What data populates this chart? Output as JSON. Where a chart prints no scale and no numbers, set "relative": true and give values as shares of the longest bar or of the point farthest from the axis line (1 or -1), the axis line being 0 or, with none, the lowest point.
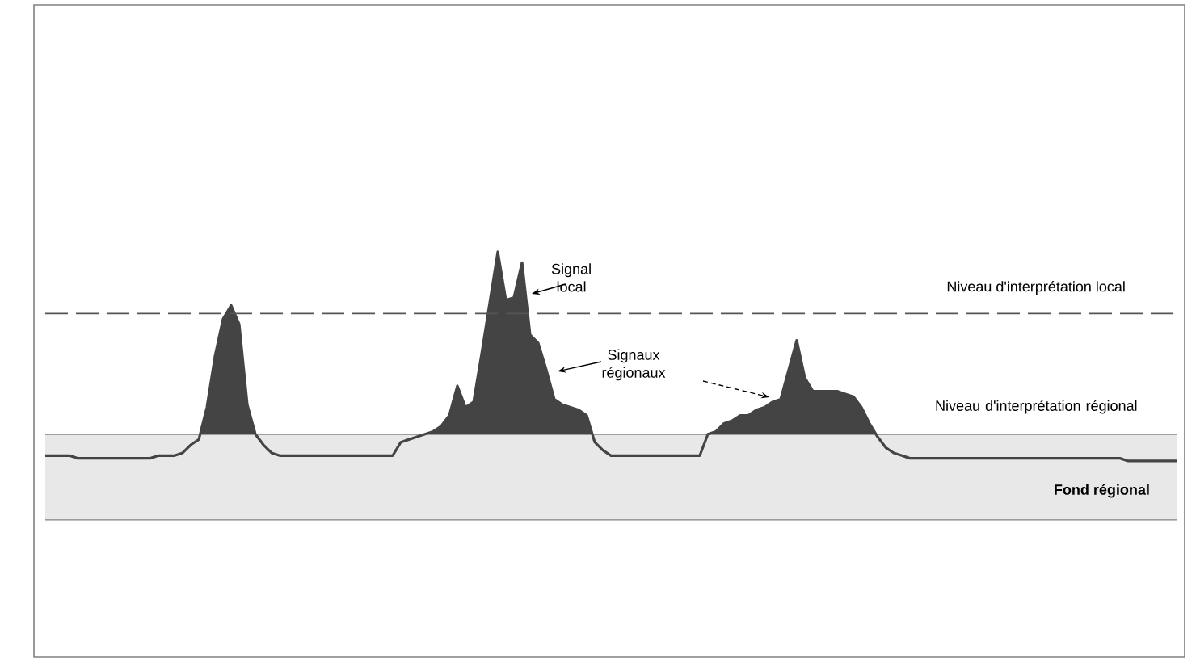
{
  "chart_data": {
    "type": "area",
    "relative": true,
    "categories": [
      null,
      null,
      null,
      null,
      null,
      null,
      null,
      null,
      null,
      null,
      null,
      null,
      null,
      null,
      null,
      null,
      null,
      null,
      null,
      null,
      null,
      null,
      null,
      null,
      null,
      null,
      null,
      null,
      null,
      null,
      null,
      null,
      null,
      null,
      null,
      null,
      null,
      null,
      null,
      null,
      null,
      null,
      null,
      null,
      null,
      null,
      null,
      null,
      null,
      null,
      null,
      null,
      null,
      null,
      null,
      null,
      null,
      null,
      null,
      null,
      null,
      null,
      null,
      null,
      null,
      null,
      null,
      null,
      null,
      null,
      null,
      null,
      null,
      null,
      null,
      null,
      null,
      null,
      null,
      null,
      null,
      null,
      null,
      null,
      null,
      null,
      null,
      null,
      null,
      null,
      null,
      null,
      null,
      null,
      null,
      null,
      null,
      null,
      null,
      null,
      null,
      null,
      null,
      null,
      null,
      null,
      null,
      null,
      null,
      null,
      null,
      null,
      null,
      null,
      null,
      null,
      null,
      null,
      null,
      null,
      null,
      null,
      null,
      null,
      null,
      null,
      null,
      null,
      null,
      null,
      null,
      null,
      null,
      null,
      null,
      null,
      null,
      null,
      null,
      null,
      null
    ],
    "series": [
      {
        "color": "#444444",
        "values": [
          0.24,
          0.24,
          0.24,
          0.24,
          0.23,
          0.23,
          0.23,
          0.23,
          0.23,
          0.23,
          0.23,
          0.23,
          0.23,
          0.23,
          0.24,
          0.24,
          0.24,
          0.25,
          0.28,
          0.3,
          0.42,
          0.61,
          0.75,
          0.8,
          0.73,
          0.43,
          0.32,
          0.28,
          0.25,
          0.24,
          0.24,
          0.24,
          0.24,
          0.24,
          0.24,
          0.24,
          0.24,
          0.24,
          0.24,
          0.24,
          0.24,
          0.24,
          0.24,
          0.24,
          0.29,
          0.3,
          0.31,
          0.32,
          0.33,
          0.35,
          0.39,
          0.5,
          0.42,
          0.44,
          0.62,
          0.81,
          1.0,
          0.82,
          0.83,
          0.96,
          0.69,
          0.66,
          0.56,
          0.45,
          0.43,
          0.42,
          0.41,
          0.39,
          0.29,
          0.26,
          0.24,
          0.24,
          0.24,
          0.24,
          0.24,
          0.24,
          0.24,
          0.24,
          0.24,
          0.24,
          0.24,
          0.24,
          0.32,
          0.33,
          0.36,
          0.37,
          0.39,
          0.39,
          0.41,
          0.42,
          0.44,
          0.45,
          0.56,
          0.67,
          0.53,
          0.48,
          0.48,
          0.48,
          0.48,
          0.47,
          0.46,
          0.42,
          0.36,
          0.31,
          0.27,
          0.25,
          0.24,
          0.23,
          0.23,
          0.23,
          0.23,
          0.23,
          0.23,
          0.23,
          0.23,
          0.23,
          0.23,
          0.23,
          0.23,
          0.23,
          0.23,
          0.23,
          0.23,
          0.23,
          0.23,
          0.23,
          0.23,
          0.23,
          0.23,
          0.23,
          0.23,
          0.23,
          0.23,
          0.23,
          0.22,
          0.22,
          0.22,
          0.22,
          0.22,
          0.22,
          0.22
        ]
      }
    ],
    "ref_lines": [
      {
        "axis": "y",
        "value": 0.77,
        "label": "Niveau d'interprétation local",
        "line_style": "dashed",
        "color": "#555555"
      },
      {
        "axis": "y",
        "value": 0.32,
        "label": "Niveau d'interprétation régional",
        "line_style": "solid",
        "color": "#555555"
      }
    ],
    "bands": [
      {
        "axis": "y",
        "from": 0,
        "to": 0.32,
        "label": "Fond régional",
        "color": "#e8e8e8"
      }
    ],
    "annotations": [
      "Signal local",
      "Signaux régionaux"
    ]
  }
}
